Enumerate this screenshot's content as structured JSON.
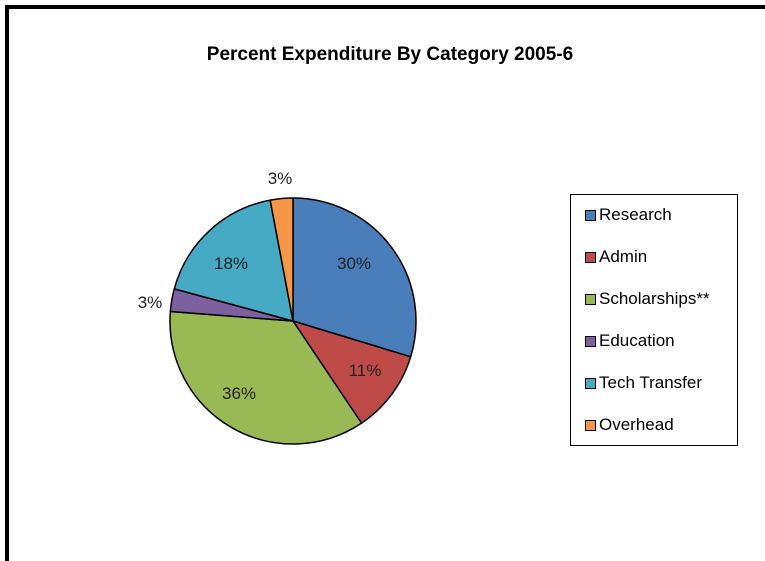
{
  "chart_data": {
    "type": "pie",
    "title": "Percent Expenditure By Category 2005-6",
    "categories": [
      "Research",
      "Admin",
      "Scholarships**",
      "Education",
      "Tech Transfer",
      "Overhead"
    ],
    "values": [
      30,
      11,
      36,
      3,
      18,
      3
    ],
    "labels": [
      "30%",
      "11%",
      "36%",
      "3%",
      "18%",
      "3%"
    ],
    "colors": [
      "#4a7ebb",
      "#be4b48",
      "#98b954",
      "#7d60a0",
      "#46aac5",
      "#f79646"
    ],
    "legend_position": "right"
  }
}
